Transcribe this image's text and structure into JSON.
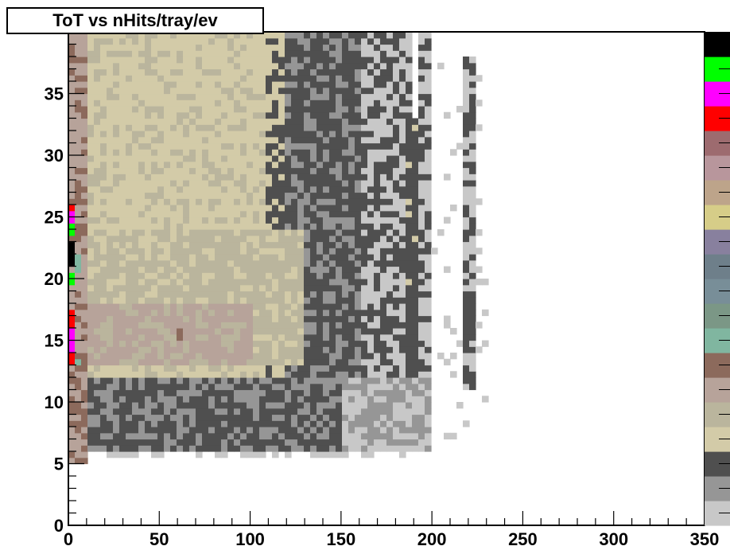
{
  "chart_data": {
    "type": "heatmap",
    "title": "ToT vs nHits/tray/ev",
    "xlabel": "",
    "ylabel": "",
    "xlim": [
      0,
      350
    ],
    "ylim": [
      0,
      40
    ],
    "x_ticks": [
      0,
      50,
      100,
      150,
      200,
      250,
      300,
      350
    ],
    "y_ticks": [
      0,
      5,
      10,
      15,
      20,
      25,
      30,
      35
    ],
    "bin_width_x": 3.5,
    "bin_width_y": 0.5,
    "grid": false,
    "legend": "color palette on right",
    "palette": [
      "#c8c8c8",
      "#969696",
      "#4f4f4f",
      "#d3cba8",
      "#bab59d",
      "#b7a39a",
      "#8c6a5c",
      "#80b6a0",
      "#7b9786",
      "#788e98",
      "#6e7f8a",
      "#88809e",
      "#d6cd88",
      "#bda48a",
      "#b8969c",
      "#9d6b6f",
      "#ff0000",
      "#ff00ff",
      "#00ff00",
      "#000000"
    ],
    "regions": [
      {
        "x": [
          10,
          180
        ],
        "y": [
          6,
          40
        ],
        "level": 3,
        "noise": 0.55,
        "alt_level": 2
      },
      {
        "x": [
          120,
          160
        ],
        "y": [
          6,
          40
        ],
        "level": 2,
        "noise": 0.35,
        "alt_level": 1
      },
      {
        "x": [
          160,
          190
        ],
        "y": [
          6,
          40
        ],
        "level": 0,
        "noise": 0.45,
        "alt_level": 2
      },
      {
        "x": [
          8,
          190
        ],
        "y": [
          6,
          12
        ],
        "level": 2,
        "noise": 0.4,
        "alt_level": 1
      },
      {
        "x": [
          150,
          200
        ],
        "y": [
          6,
          12
        ],
        "level": 0,
        "noise": 0.5,
        "alt_level": 1
      },
      {
        "x": [
          10,
          110
        ],
        "y": [
          12,
          40
        ],
        "level": 3,
        "noise": 0.25,
        "alt_level": 4
      },
      {
        "x": [
          10,
          130
        ],
        "y": [
          13,
          24
        ],
        "level": 4,
        "noise": 0.3,
        "alt_level": 3
      },
      {
        "x": [
          10,
          100
        ],
        "y": [
          13,
          18
        ],
        "level": 5,
        "noise": 0.3,
        "alt_level": 4
      },
      {
        "x": [
          58,
          62
        ],
        "y": [
          15,
          16
        ],
        "level": 6,
        "noise": 0,
        "alt_level": 6
      },
      {
        "x": [
          186,
          192
        ],
        "y": [
          12,
          33
        ],
        "level": 2,
        "noise": 0.15,
        "alt_level": 3
      },
      {
        "x": [
          192,
          198
        ],
        "y": [
          12,
          40
        ],
        "level": 0,
        "noise": 0.4,
        "alt_level": 2
      },
      {
        "x": [
          218,
          224
        ],
        "y": [
          11,
          38
        ],
        "level": 0,
        "noise": 0.5,
        "alt_level": 2
      },
      {
        "x": [
          218,
          224
        ],
        "y": [
          15,
          19
        ],
        "level": 2,
        "noise": 0,
        "alt_level": 2
      },
      {
        "x": [
          0,
          10
        ],
        "y": [
          5,
          40
        ],
        "level": 5,
        "noise": 0.3,
        "alt_level": 6
      },
      {
        "x": [
          0,
          3.5
        ],
        "y": [
          21,
          23
        ],
        "level": 19,
        "noise": 0,
        "alt_level": 19
      },
      {
        "x": [
          0,
          3.5
        ],
        "y": [
          19.5,
          20.5
        ],
        "level": 18,
        "noise": 0,
        "alt_level": 18
      },
      {
        "x": [
          0,
          3.5
        ],
        "y": [
          23.5,
          24.5
        ],
        "level": 18,
        "noise": 0,
        "alt_level": 18
      },
      {
        "x": [
          0,
          3.5
        ],
        "y": [
          14,
          16
        ],
        "level": 17,
        "noise": 0,
        "alt_level": 17
      },
      {
        "x": [
          0,
          3.5
        ],
        "y": [
          24.5,
          25.5
        ],
        "level": 17,
        "noise": 0,
        "alt_level": 17
      },
      {
        "x": [
          0,
          3.5
        ],
        "y": [
          16,
          17.5
        ],
        "level": 16,
        "noise": 0,
        "alt_level": 16
      },
      {
        "x": [
          0,
          3.5
        ],
        "y": [
          13,
          14
        ],
        "level": 16,
        "noise": 0,
        "alt_level": 16
      },
      {
        "x": [
          0,
          3.5
        ],
        "y": [
          25.5,
          26
        ],
        "level": 16,
        "noise": 0,
        "alt_level": 16
      },
      {
        "x": [
          3.5,
          7
        ],
        "y": [
          20.5,
          22
        ],
        "level": 7,
        "noise": 0,
        "alt_level": 7
      },
      {
        "x": [
          3.5,
          7
        ],
        "y": [
          13,
          13.5
        ],
        "level": 7,
        "noise": 0,
        "alt_level": 7
      }
    ]
  }
}
